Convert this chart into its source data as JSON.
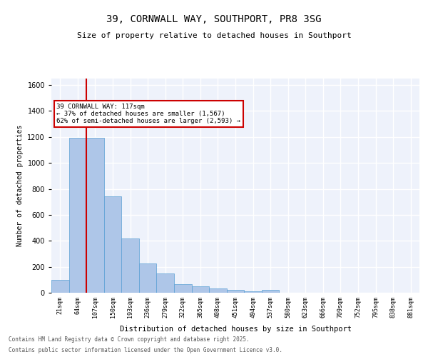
{
  "title": "39, CORNWALL WAY, SOUTHPORT, PR8 3SG",
  "subtitle": "Size of property relative to detached houses in Southport",
  "xlabel": "Distribution of detached houses by size in Southport",
  "ylabel": "Number of detached properties",
  "categories": [
    "21sqm",
    "64sqm",
    "107sqm",
    "150sqm",
    "193sqm",
    "236sqm",
    "279sqm",
    "322sqm",
    "365sqm",
    "408sqm",
    "451sqm",
    "494sqm",
    "537sqm",
    "580sqm",
    "623sqm",
    "666sqm",
    "709sqm",
    "752sqm",
    "795sqm",
    "838sqm",
    "881sqm"
  ],
  "values": [
    100,
    1195,
    1195,
    740,
    740,
    420,
    420,
    225,
    225,
    150,
    150,
    65,
    65,
    50,
    35,
    35,
    20,
    20,
    10,
    10,
    20,
    20
  ],
  "bar_values": [
    100,
    1195,
    1195,
    740,
    420,
    225,
    150,
    65,
    50,
    35,
    20,
    10,
    20,
    0,
    0,
    0,
    0,
    0,
    0,
    0,
    0
  ],
  "hist_values": [
    100,
    1195,
    740,
    420,
    225,
    150,
    65,
    50,
    35,
    20,
    10,
    20,
    0,
    0,
    0,
    0,
    0,
    0,
    0,
    0
  ],
  "bar_color": "#aec6e8",
  "bar_edge_color": "#5a9fd4",
  "vline_x": 2,
  "vline_color": "#cc0000",
  "annotation_text": "39 CORNWALL WAY: 117sqm\n← 37% of detached houses are smaller (1,567)\n62% of semi-detached houses are larger (2,593) →",
  "annotation_box_color": "#cc0000",
  "background_color": "#eef2fb",
  "grid_color": "#ffffff",
  "ylim": [
    0,
    1650
  ],
  "yticks": [
    0,
    200,
    400,
    600,
    800,
    1000,
    1200,
    1400,
    1600
  ],
  "footer_line1": "Contains HM Land Registry data © Crown copyright and database right 2025.",
  "footer_line2": "Contains public sector information licensed under the Open Government Licence v3.0."
}
